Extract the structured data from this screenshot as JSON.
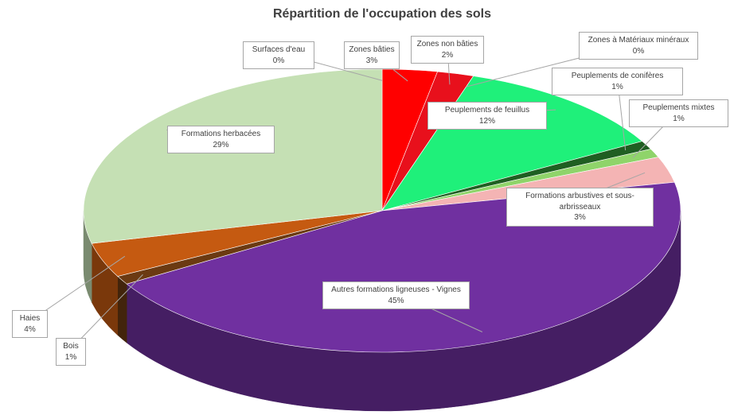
{
  "chart_data": {
    "type": "pie",
    "title": "Répartition de l'occupation des sols",
    "categories": [
      "Surfaces d'eau",
      "Zones bâties",
      "Zones non bâties",
      "Zones à Matériaux minéraux",
      "Peuplements de feuillus",
      "Peuplements de conifères",
      "Peuplements mixtes",
      "Formations arbustives et sous-arbrisseaux",
      "Autres formations ligneuses - Vignes",
      "Bois",
      "Haies",
      "Formations herbacées"
    ],
    "values": [
      0,
      3,
      2,
      0,
      12,
      1,
      1,
      3,
      45,
      1,
      4,
      29
    ],
    "value_labels": [
      "0%",
      "3%",
      "2%",
      "0%",
      "12%",
      "1%",
      "1%",
      "3%",
      "45%",
      "1%",
      "4%",
      "29%"
    ],
    "colors": [
      "#4fb3e8",
      "#ff0000",
      "#e8101c",
      "#bfbfbf",
      "#1ff07a",
      "#1f5f22",
      "#8fd46a",
      "#f4b4b4",
      "#7030a0",
      "#6b3a12",
      "#c55a11",
      "#c5e0b4"
    ]
  }
}
